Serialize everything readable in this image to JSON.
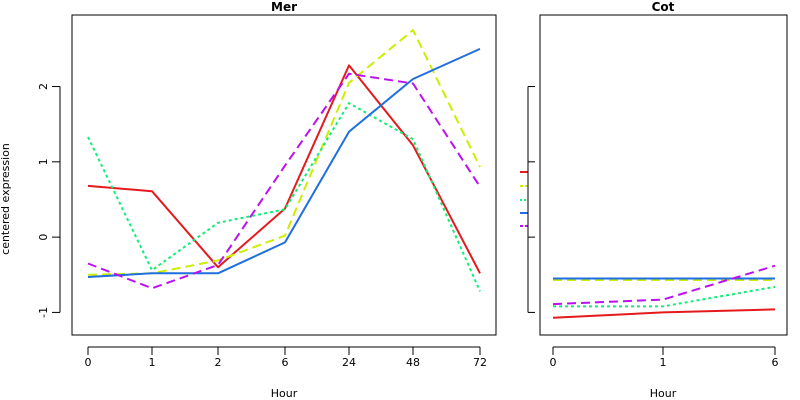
{
  "ylabel": "centered expression",
  "colors": {
    "red": "#e41a1c",
    "yellow": "#ccee00",
    "green": "#11ee77",
    "blue": "#1f6fe0",
    "purple": "#bb11ee"
  },
  "chart_data": [
    {
      "type": "line",
      "title": "Mer",
      "xlabel": "Hour",
      "ylabel": "centered expression",
      "categories": [
        "0",
        "1",
        "2",
        "6",
        "24",
        "48",
        "72"
      ],
      "ylim": [
        -1.3,
        2.95
      ],
      "yticks": [
        -1,
        0,
        1,
        2
      ],
      "series": [
        {
          "color": "#e41a1c",
          "dash": "solid",
          "values": [
            0.68,
            0.61,
            -0.4,
            0.38,
            2.28,
            1.22,
            -0.48
          ]
        },
        {
          "color": "#ccee00",
          "dash": "dashed",
          "values": [
            -0.5,
            -0.48,
            -0.31,
            0.02,
            2.05,
            2.75,
            0.93
          ]
        },
        {
          "color": "#11ee77",
          "dash": "dotted",
          "values": [
            1.33,
            -0.44,
            0.19,
            0.37,
            1.78,
            1.3,
            -0.72
          ]
        },
        {
          "color": "#1f6fe0",
          "dash": "solid",
          "values": [
            -0.53,
            -0.48,
            -0.48,
            -0.07,
            1.4,
            2.1,
            2.5
          ]
        },
        {
          "color": "#bb11ee",
          "dash": "dashed",
          "values": [
            -0.35,
            -0.68,
            -0.37,
            0.95,
            2.17,
            2.04,
            0.67
          ]
        }
      ]
    },
    {
      "type": "line",
      "title": "Cot",
      "xlabel": "Hour",
      "categories": [
        "0",
        "1",
        "6"
      ],
      "ylim": [
        -1.3,
        2.95
      ],
      "series": [
        {
          "color": "#e41a1c",
          "dash": "solid",
          "values": [
            -1.07,
            -1.0,
            -0.96
          ]
        },
        {
          "color": "#ccee00",
          "dash": "dashed",
          "values": [
            -0.57,
            -0.57,
            -0.57
          ]
        },
        {
          "color": "#11ee77",
          "dash": "dotted",
          "values": [
            -0.92,
            -0.92,
            -0.66
          ]
        },
        {
          "color": "#1f6fe0",
          "dash": "solid",
          "values": [
            -0.55,
            -0.55,
            -0.55
          ]
        },
        {
          "color": "#bb11ee",
          "dash": "dashed",
          "values": [
            -0.89,
            -0.83,
            -0.38
          ]
        }
      ]
    }
  ]
}
